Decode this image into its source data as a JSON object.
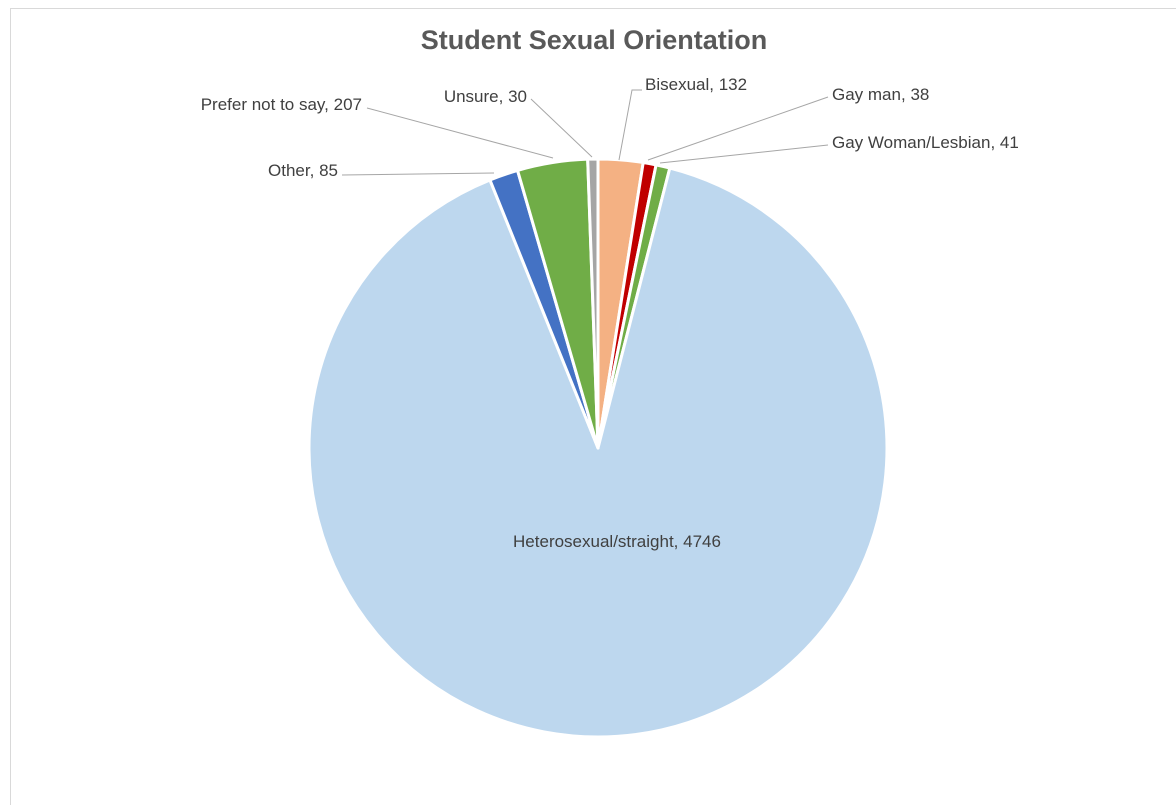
{
  "chart_data": {
    "type": "pie",
    "title": "Student Sexual Orientation",
    "categories": [
      "Bisexual",
      "Gay man",
      "Gay Woman/Lesbian",
      "Heterosexual/straight",
      "Other",
      "Prefer not to say",
      "Unsure"
    ],
    "values": [
      132,
      38,
      41,
      4746,
      85,
      207,
      30
    ],
    "colors": [
      "#f4b183",
      "#c00000",
      "#70ad47",
      "#bdd7ee",
      "#4472c4",
      "#70ad47",
      "#a5a5a5"
    ]
  }
}
